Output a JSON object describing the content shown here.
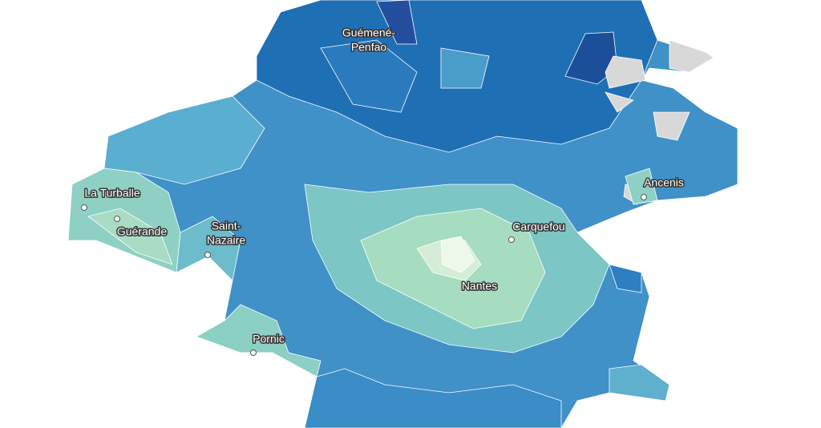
{
  "places": [
    {
      "lines": [
        "Guémené-",
        "Penfao"
      ]
    },
    {
      "lines": [
        "La Turballe"
      ]
    },
    {
      "lines": [
        "Guérande"
      ]
    },
    {
      "lines": [
        "Saint-",
        "Nazaire"
      ]
    },
    {
      "lines": [
        "Pornic"
      ]
    },
    {
      "lines": [
        "Nantes"
      ]
    },
    {
      "lines": [
        "Carquefou"
      ]
    },
    {
      "lines": [
        "Ancenis"
      ]
    }
  ]
}
